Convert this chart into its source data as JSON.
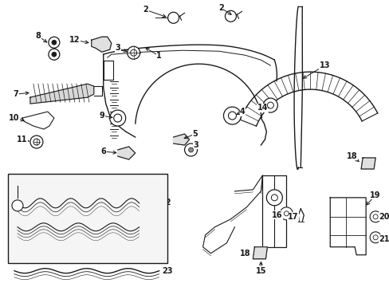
{
  "bg_color": "#ffffff",
  "fig_width": 4.89,
  "fig_height": 3.6,
  "dpi": 100,
  "lc": "#1a1a1a",
  "fs": 7.0
}
